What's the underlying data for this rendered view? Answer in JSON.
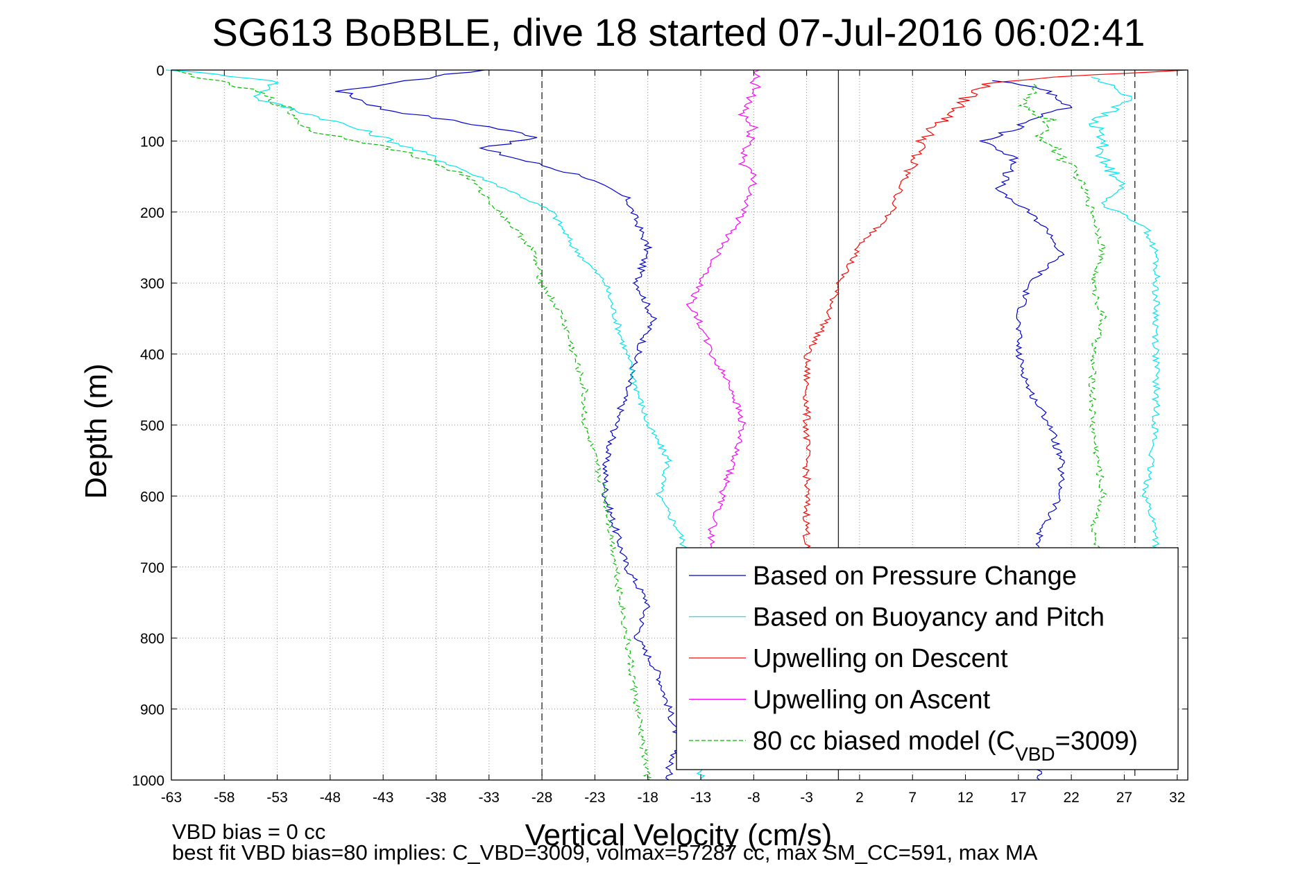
{
  "chart_data": {
    "type": "line",
    "title": "SG613 BoBBLE, dive 18 started 07-Jul-2016 06:02:41",
    "xlabel": "Vertical Velocity (cm/s)",
    "ylabel": "Depth (m)",
    "xlim": [
      -63,
      33
    ],
    "ylim": [
      0,
      1000
    ],
    "y_reversed": true,
    "grid": true,
    "legend_position": "bottom-right",
    "xticks": [
      "-63",
      "-58",
      "-53",
      "-48",
      "-43",
      "-38",
      "-33",
      "-28",
      "-23",
      "-18",
      "-13",
      "-8",
      "-3",
      "2",
      "7",
      "12",
      "17",
      "22",
      "27",
      "32"
    ],
    "yticks": [
      "0",
      "100",
      "200",
      "300",
      "400",
      "500",
      "600",
      "700",
      "800",
      "900",
      "1000"
    ],
    "reference_lines": [
      {
        "x": -28,
        "style": "dashed"
      },
      {
        "x": 0,
        "style": "solid"
      },
      {
        "x": 28,
        "style": "dashed"
      }
    ],
    "series": [
      {
        "name": "Based on Pressure Change",
        "color": "#0000cc",
        "descent": {
          "x": [
            -34,
            -47,
            -43,
            -33,
            -28,
            -34,
            -24,
            -20,
            -18,
            -19,
            -17.5,
            -19,
            -20,
            -21,
            -22,
            -22,
            -21,
            -20,
            -18,
            -19,
            -17,
            -16,
            -15,
            -16,
            -16
          ],
          "depth": [
            0,
            30,
            55,
            80,
            95,
            110,
            150,
            180,
            250,
            300,
            350,
            400,
            450,
            500,
            550,
            600,
            650,
            700,
            750,
            800,
            850,
            900,
            950,
            980,
            1000
          ]
        },
        "ascent": {
          "x": [
            15,
            20,
            22,
            19,
            17,
            14,
            17,
            15,
            18,
            20,
            21,
            18,
            17,
            17,
            18,
            20,
            21,
            21,
            19,
            19,
            19
          ],
          "depth": [
            15,
            30,
            50,
            65,
            80,
            100,
            130,
            170,
            200,
            230,
            260,
            300,
            350,
            400,
            450,
            500,
            550,
            600,
            650,
            700,
            1000
          ]
        }
      },
      {
        "name": "Based on Buoyancy and Pitch",
        "color": "#00e5ee",
        "descent": {
          "x": [
            -63,
            -53,
            -55,
            -47,
            -43,
            -37,
            -31,
            -27,
            -25,
            -22,
            -21,
            -20,
            -19,
            -18,
            -16,
            -17,
            -15,
            -14,
            -13,
            -13,
            -13
          ],
          "depth": [
            0,
            15,
            40,
            75,
            95,
            130,
            170,
            200,
            250,
            300,
            350,
            400,
            450,
            500,
            550,
            600,
            650,
            700,
            800,
            900,
            1000
          ]
        },
        "ascent": {
          "x": [
            24,
            28,
            24,
            25,
            25,
            27,
            25,
            29,
            30,
            30,
            30,
            30,
            29,
            30,
            30
          ],
          "depth": [
            10,
            40,
            70,
            100,
            130,
            160,
            190,
            220,
            260,
            300,
            400,
            500,
            600,
            650,
            700
          ]
        }
      },
      {
        "name": "Upwelling on Descent",
        "color": "#ff0000",
        "descent": {
          "x": [
            33,
            20,
            14,
            12,
            11,
            9,
            8,
            7,
            6,
            5,
            2,
            0,
            -1,
            -3,
            -3,
            -3,
            -3,
            -3
          ],
          "depth": [
            0,
            10,
            20,
            40,
            60,
            80,
            100,
            130,
            160,
            200,
            250,
            300,
            350,
            400,
            500,
            600,
            650,
            700
          ]
        }
      },
      {
        "name": "Upwelling on Ascent",
        "color": "#ff00ff",
        "ascent": {
          "x": [
            -8,
            -8,
            -9,
            -8,
            -9,
            -8,
            -9,
            -11,
            -13,
            -14,
            -13,
            -12,
            -10,
            -9,
            -10,
            -11,
            -12,
            -12
          ],
          "depth": [
            0,
            30,
            60,
            90,
            120,
            160,
            200,
            250,
            300,
            330,
            360,
            400,
            450,
            500,
            550,
            600,
            650,
            700
          ]
        }
      },
      {
        "name": "80 cc biased model (C_VBD=3009)",
        "legend_text": "80 cc biased model (C",
        "legend_sub": "VBD",
        "legend_suffix": "=3009)",
        "color": "#00bb00",
        "descent": {
          "x": [
            -63,
            -55,
            -52,
            -50,
            -45,
            -40,
            -35,
            -32,
            -29,
            -28,
            -26,
            -25,
            -24,
            -24,
            -23,
            -22,
            -21,
            -20,
            -19,
            -18
          ],
          "depth": [
            0,
            30,
            55,
            85,
            100,
            120,
            150,
            200,
            250,
            300,
            350,
            400,
            450,
            500,
            550,
            600,
            700,
            800,
            900,
            1000
          ]
        },
        "ascent": {
          "x": [
            19,
            17,
            20,
            19,
            21,
            23,
            24,
            25,
            24,
            25,
            24,
            24,
            25,
            24,
            25
          ],
          "depth": [
            20,
            50,
            70,
            90,
            120,
            160,
            200,
            250,
            300,
            350,
            400,
            500,
            600,
            650,
            700
          ]
        }
      }
    ],
    "annotations": [
      "VBD bias = 0 cc",
      "best fit VBD bias=80 implies: C_VBD=3009, volmax=57287 cc, max SM_CC=591, max MA"
    ]
  }
}
